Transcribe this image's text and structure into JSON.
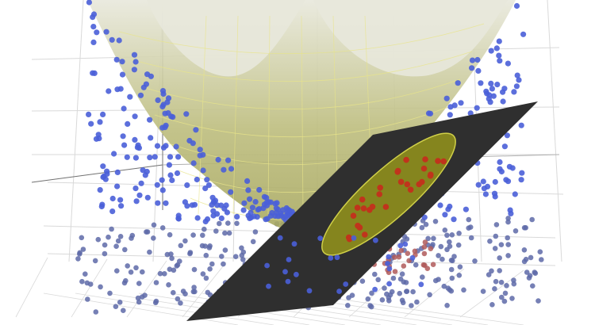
{
  "scene": {
    "description_visible_text": "",
    "colors": {
      "background": "#ffffff",
      "grid": "#d9d9d9",
      "grid_dark": "#707070",
      "surface_fill": "#bdbd7e",
      "surface_highlight": "#e8e8dc",
      "surface_wire": "#e9e58a",
      "plane_fill": "#2f2f2f",
      "ellipse_fill": "#8a8a1e",
      "ellipse_edge": "#d9d94a",
      "blue_point": "#4a5fd8",
      "blue_point_shadow": "#5e6aa8",
      "red_point": "#c0341c",
      "red_point_shadow": "#b05a5a"
    },
    "legend_items": []
  }
}
